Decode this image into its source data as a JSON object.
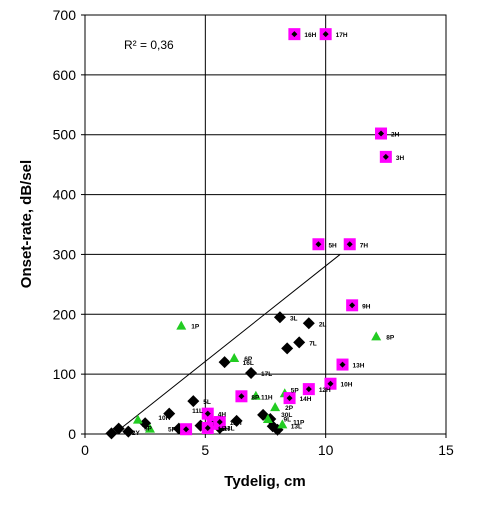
{
  "chart_data": {
    "type": "scatter",
    "xlabel": "Tydelig, cm",
    "ylabel": "Onset-rate, dB/sel",
    "xlim": [
      0,
      15
    ],
    "ylim": [
      0,
      700
    ],
    "xticks": [
      "0",
      "5",
      "10",
      "15"
    ],
    "yticks": [
      "0",
      "100",
      "200",
      "300",
      "400",
      "500",
      "600",
      "700"
    ],
    "grid": true,
    "annotation": "R² = 0,36",
    "trendline": {
      "x": [
        1.2,
        10.6
      ],
      "y": [
        0,
        300
      ]
    },
    "series": [
      {
        "marker": "diamond",
        "color": "#000000",
        "points": [
          {
            "x": 1.1,
            "y": 1,
            "label": ""
          },
          {
            "x": 1.4,
            "y": 9,
            "label": ""
          },
          {
            "x": 1.8,
            "y": 4,
            "label": ""
          },
          {
            "x": 2.5,
            "y": 18,
            "label": ""
          },
          {
            "x": 3.5,
            "y": 34,
            "label": ""
          },
          {
            "x": 3.9,
            "y": 9,
            "label": ""
          },
          {
            "x": 4.5,
            "y": 55,
            "label": "5L"
          },
          {
            "x": 4.8,
            "y": 14,
            "label": ""
          },
          {
            "x": 5.6,
            "y": 10,
            "label": ""
          },
          {
            "x": 5.8,
            "y": 120,
            "label": ""
          },
          {
            "x": 6.3,
            "y": 22,
            "label": ""
          },
          {
            "x": 6.9,
            "y": 102,
            "label": "17L"
          },
          {
            "x": 7.4,
            "y": 32,
            "label": ""
          },
          {
            "x": 7.7,
            "y": 25,
            "label": ""
          },
          {
            "x": 7.8,
            "y": 13,
            "label": ""
          },
          {
            "x": 8.0,
            "y": 7,
            "label": ""
          },
          {
            "x": 8.1,
            "y": 195,
            "label": "3L"
          },
          {
            "x": 8.4,
            "y": 143,
            "label": ""
          },
          {
            "x": 8.9,
            "y": 153,
            "label": "7L"
          },
          {
            "x": 9.3,
            "y": 185,
            "label": "2L"
          }
        ]
      },
      {
        "marker": "triangle",
        "color": "#22cc22",
        "points": [
          {
            "x": 4.0,
            "y": 181,
            "label": "1P"
          },
          {
            "x": 2.2,
            "y": 24,
            "label": ""
          },
          {
            "x": 2.7,
            "y": 9,
            "label": ""
          },
          {
            "x": 6.2,
            "y": 127,
            "label": "6P"
          },
          {
            "x": 7.1,
            "y": 64,
            "label": ""
          },
          {
            "x": 7.6,
            "y": 25,
            "label": ""
          },
          {
            "x": 7.9,
            "y": 45,
            "label": "2P"
          },
          {
            "x": 8.3,
            "y": 68,
            "label": ""
          },
          {
            "x": 8.2,
            "y": 16,
            "label": ""
          },
          {
            "x": 12.1,
            "y": 163,
            "label": "8P"
          }
        ]
      },
      {
        "marker": "square",
        "color": "#ff00ff",
        "points": [
          {
            "x": 8.7,
            "y": 668,
            "label": "16H"
          },
          {
            "x": 10.0,
            "y": 668,
            "label": "17H"
          },
          {
            "x": 12.3,
            "y": 502,
            "label": "2H"
          },
          {
            "x": 12.5,
            "y": 463,
            "label": "3H"
          },
          {
            "x": 9.7,
            "y": 317,
            "label": "5H"
          },
          {
            "x": 11.0,
            "y": 317,
            "label": "7H"
          },
          {
            "x": 11.1,
            "y": 215,
            "label": "9H"
          },
          {
            "x": 10.7,
            "y": 116,
            "label": "13H"
          },
          {
            "x": 10.2,
            "y": 84,
            "label": "10H"
          },
          {
            "x": 9.3,
            "y": 75,
            "label": "12H"
          },
          {
            "x": 8.5,
            "y": 60,
            "label": "14H"
          },
          {
            "x": 6.5,
            "y": 63,
            "label": "8P 11H"
          },
          {
            "x": 5.1,
            "y": 34,
            "label": "4H"
          },
          {
            "x": 5.3,
            "y": 17,
            "label": ""
          },
          {
            "x": 5.6,
            "y": 20,
            "label": "12H"
          },
          {
            "x": 4.2,
            "y": 8,
            "label": ""
          },
          {
            "x": 5.1,
            "y": 10,
            "label": "15H"
          }
        ]
      }
    ],
    "extra_labels": [
      {
        "x": 4.2,
        "y": 40,
        "text": "11L"
      },
      {
        "x": 6.3,
        "y": 120,
        "text": "16L"
      },
      {
        "x": 8.3,
        "y": 74,
        "text": "5P"
      },
      {
        "x": 7.9,
        "y": 33,
        "text": "30L"
      },
      {
        "x": 8.0,
        "y": 26,
        "text": "9L"
      },
      {
        "x": 8.4,
        "y": 21,
        "text": "11P"
      },
      {
        "x": 8.3,
        "y": 14,
        "text": "13L"
      },
      {
        "x": 2.8,
        "y": 28,
        "text": "10R"
      },
      {
        "x": 2.1,
        "y": 17,
        "text": "6L"
      },
      {
        "x": 2.2,
        "y": 11,
        "text": "9P"
      },
      {
        "x": 1.7,
        "y": 3,
        "text": "2Y"
      },
      {
        "x": 3.2,
        "y": 9,
        "text": "5P"
      },
      {
        "x": 5.5,
        "y": 11,
        "text": "13L"
      }
    ]
  }
}
